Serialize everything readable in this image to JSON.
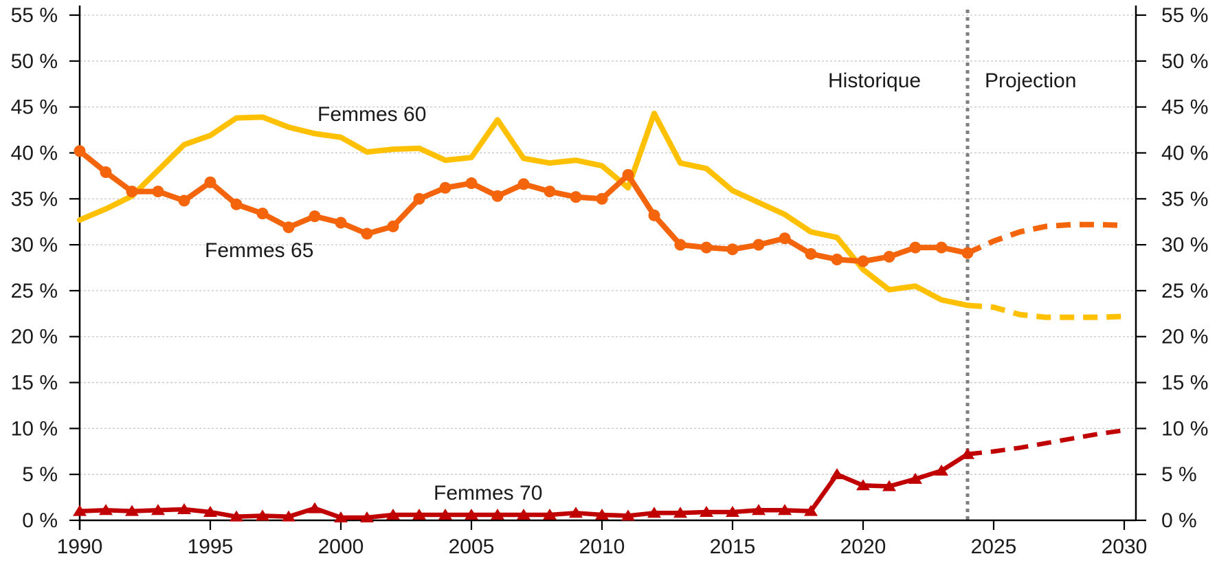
{
  "chart_data": {
    "type": "line",
    "title": "",
    "x_axis": {
      "start": 1990,
      "end": 2030,
      "ticks": [
        1990,
        1995,
        2000,
        2005,
        2010,
        2015,
        2020,
        2025,
        2030
      ]
    },
    "y_axis": {
      "min": 0,
      "max": 55,
      "tick_step": 5,
      "unit": "%",
      "tick_values": [
        0,
        5,
        10,
        15,
        20,
        25,
        30,
        35,
        40,
        45,
        50,
        55
      ],
      "tick_labels": [
        "0 %",
        "5 %",
        "10 %",
        "15 %",
        "20 %",
        "25 %",
        "30 %",
        "35 %",
        "40 %",
        "45 %",
        "50 %",
        "55 %"
      ],
      "sides": "both",
      "grid": "dashed"
    },
    "annotations": {
      "historique": "Historique",
      "projection": "Projection",
      "divider_year": 2024
    },
    "colors": {
      "femmes60": "#FFC000",
      "femmes65": "#F4640A",
      "femmes70": "#C00000",
      "divider": "#7F7F7F",
      "gridline": "#C6C6C6",
      "axis": "#000000",
      "text": "#1A1A1A"
    },
    "historical_years": [
      1990,
      1991,
      1992,
      1993,
      1994,
      1995,
      1996,
      1997,
      1998,
      1999,
      2000,
      2001,
      2002,
      2003,
      2004,
      2005,
      2006,
      2007,
      2008,
      2009,
      2010,
      2011,
      2012,
      2013,
      2014,
      2015,
      2016,
      2017,
      2018,
      2019,
      2020,
      2021,
      2022,
      2023,
      2024
    ],
    "projection_years": [
      2024,
      2025,
      2026,
      2027,
      2028,
      2029,
      2030
    ],
    "series": [
      {
        "name": "Femmes 60",
        "marker": "none",
        "historical": [
          32.7,
          33.9,
          35.3,
          38.1,
          40.9,
          41.9,
          43.8,
          43.9,
          42.8,
          42.1,
          41.7,
          40.1,
          40.4,
          40.5,
          39.2,
          39.5,
          43.6,
          39.4,
          38.9,
          39.2,
          38.6,
          36.2,
          44.3,
          38.9,
          38.3,
          35.9,
          34.6,
          33.3,
          31.4,
          30.8,
          27.3,
          25.1,
          25.5,
          24.0,
          23.4
        ],
        "projection": [
          23.4,
          23.2,
          22.4,
          22.1,
          22.1,
          22.1,
          22.2
        ]
      },
      {
        "name": "Femmes 65",
        "marker": "circle",
        "historical": [
          40.2,
          37.9,
          35.8,
          35.8,
          34.8,
          36.8,
          34.4,
          33.4,
          31.9,
          33.1,
          32.4,
          31.2,
          32.0,
          35.0,
          36.2,
          36.7,
          35.3,
          36.6,
          35.8,
          35.2,
          35.0,
          37.6,
          33.2,
          30.0,
          29.7,
          29.5,
          30.0,
          30.7,
          29.0,
          28.4,
          28.2,
          28.7,
          29.7,
          29.7,
          29.1
        ],
        "projection": [
          29.1,
          30.4,
          31.4,
          32.0,
          32.2,
          32.2,
          32.1
        ]
      },
      {
        "name": "Femmes 70",
        "marker": "triangle",
        "historical": [
          1.0,
          1.1,
          1.0,
          1.1,
          1.2,
          0.9,
          0.4,
          0.5,
          0.4,
          1.3,
          0.3,
          0.3,
          0.6,
          0.6,
          0.6,
          0.6,
          0.6,
          0.6,
          0.6,
          0.8,
          0.6,
          0.5,
          0.8,
          0.8,
          0.9,
          0.9,
          1.1,
          1.1,
          1.0,
          5.0,
          3.8,
          3.7,
          4.5,
          5.4,
          7.2
        ],
        "projection": [
          7.2,
          7.5,
          7.9,
          8.4,
          8.9,
          9.4,
          9.8
        ]
      }
    ]
  }
}
